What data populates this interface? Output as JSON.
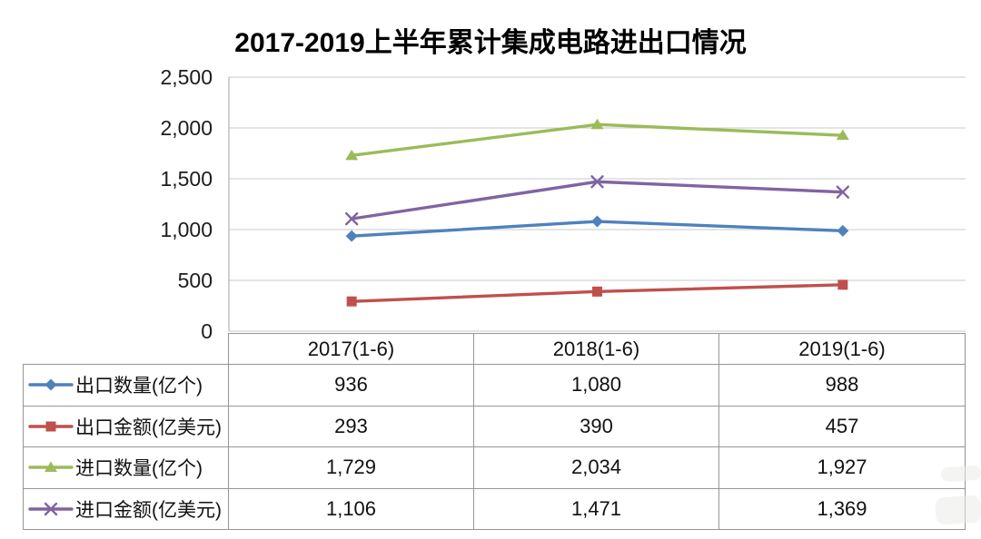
{
  "title": "2017-2019上半年累计集成电路进出口情况",
  "chart_data": {
    "type": "line",
    "title": "2017-2019上半年累计集成电路进出口情况",
    "categories": [
      "2017(1-6)",
      "2018(1-6)",
      "2019(1-6)"
    ],
    "series": [
      {
        "name": "出口数量(亿个)",
        "values": [
          936,
          1080,
          988
        ],
        "color": "#4F81BD",
        "marker": "diamond"
      },
      {
        "name": "出口金额(亿美元)",
        "values": [
          293,
          390,
          457
        ],
        "color": "#C0504D",
        "marker": "square"
      },
      {
        "name": "进口数量(亿个)",
        "values": [
          1729,
          2034,
          1927
        ],
        "color": "#9BBB59",
        "marker": "triangle"
      },
      {
        "name": "进口金额(亿美元)",
        "values": [
          1106,
          1471,
          1369
        ],
        "color": "#8064A2",
        "marker": "x"
      }
    ],
    "xlabel": "",
    "ylabel": "",
    "ylim": [
      0,
      2500
    ],
    "ytick_interval": 500,
    "ytick_labels": [
      "0",
      "500",
      "1,000",
      "1,500",
      "2,000",
      "2,500"
    ],
    "grid": true,
    "legend_position": "data-table-key-column"
  },
  "table": {
    "column_headers": [
      "2017(1-6)",
      "2018(1-6)",
      "2019(1-6)"
    ],
    "rows": [
      {
        "label": "出口数量(亿个)",
        "values": [
          "936",
          "1,080",
          "988"
        ]
      },
      {
        "label": "出口金额(亿美元)",
        "values": [
          "293",
          "390",
          "457"
        ]
      },
      {
        "label": "进口数量(亿个)",
        "values": [
          "1,729",
          "2,034",
          "1,927"
        ]
      },
      {
        "label": "进口金额(亿美元)",
        "values": [
          "1,106",
          "1,471",
          "1,369"
        ]
      }
    ]
  }
}
